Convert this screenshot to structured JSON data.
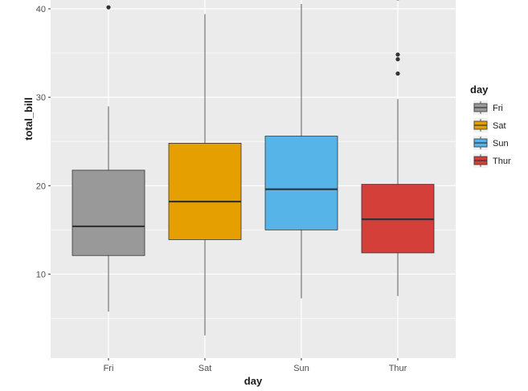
{
  "chart_data": {
    "type": "boxplot",
    "title": "",
    "xlabel": "day",
    "ylabel": "total_bill",
    "ylim": [
      0.5,
      41
    ],
    "yticks": [
      10,
      20,
      30,
      40
    ],
    "grid": true,
    "legend": {
      "title": "day",
      "position": "right"
    },
    "categories": [
      "Fri",
      "Sat",
      "Sun",
      "Thur"
    ],
    "colors": {
      "Fri": "#999999",
      "Sat": "#E69F00",
      "Sun": "#56B4E9",
      "Thur": "#D43F3A"
    },
    "panel_background": "#EBEBEB",
    "boxes": [
      {
        "category": "Fri",
        "whisker_low": 5.75,
        "q1": 12.1,
        "median": 15.4,
        "q3": 21.75,
        "whisker_high": 28.97,
        "outliers": [
          40.17
        ]
      },
      {
        "category": "Sat",
        "whisker_low": 3.07,
        "q1": 13.9,
        "median": 18.2,
        "q3": 24.8,
        "whisker_high": 39.4,
        "outliers": []
      },
      {
        "category": "Sun",
        "whisker_low": 7.25,
        "q1": 15.0,
        "median": 19.6,
        "q3": 25.6,
        "whisker_high": 40.55,
        "outliers": []
      },
      {
        "category": "Thur",
        "whisker_low": 7.51,
        "q1": 12.4,
        "median": 16.2,
        "q3": 20.15,
        "whisker_high": 29.8,
        "outliers": [
          32.68,
          34.3,
          34.83,
          41.19
        ]
      }
    ]
  }
}
